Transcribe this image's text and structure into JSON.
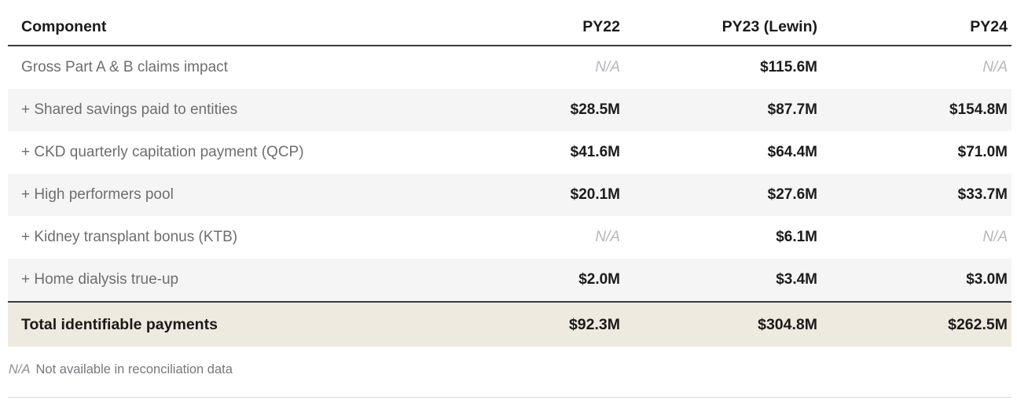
{
  "table": {
    "columns": [
      "Component",
      "PY22",
      "PY23 (Lewin)",
      "PY24"
    ],
    "rows": [
      {
        "label": "Gross Part A & B claims impact",
        "values": [
          "N/A",
          "$115.6M",
          "N/A"
        ]
      },
      {
        "label": "+ Shared savings paid to entities",
        "values": [
          "$28.5M",
          "$87.7M",
          "$154.8M"
        ]
      },
      {
        "label": "+ CKD quarterly capitation payment (QCP)",
        "values": [
          "$41.6M",
          "$64.4M",
          "$71.0M"
        ]
      },
      {
        "label": "+ High performers pool",
        "values": [
          "$20.1M",
          "$27.6M",
          "$33.7M"
        ]
      },
      {
        "label": "+ Kidney transplant bonus (KTB)",
        "values": [
          "N/A",
          "$6.1M",
          "N/A"
        ]
      },
      {
        "label": "+ Home dialysis true-up",
        "values": [
          "$2.0M",
          "$3.4M",
          "$3.0M"
        ]
      }
    ],
    "total_row": {
      "label": "Total identifiable payments",
      "values": [
        "$92.3M",
        "$304.8M",
        "$262.5M"
      ]
    }
  },
  "footnote": {
    "abbr": "N/A",
    "text": "Not available in reconciliation data"
  },
  "colors": {
    "header_text": "#1a1a1a",
    "row_label_text": "#6e6e6e",
    "value_text": "#1b1b1b",
    "na_text": "#b6b7bf",
    "zebra_row_bg": "#f5f5f5",
    "total_row_bg": "#efeae0",
    "thick_border": "#3b3b3b",
    "bottom_rule": "#d8d8d8"
  },
  "chart_data": {
    "type": "table",
    "columns": [
      "Component",
      "PY22",
      "PY23 (Lewin)",
      "PY24"
    ],
    "rows": [
      [
        "Gross Part A & B claims impact",
        "N/A",
        "$115.6M",
        "N/A"
      ],
      [
        "+ Shared savings paid to entities",
        "$28.5M",
        "$87.7M",
        "$154.8M"
      ],
      [
        "+ CKD quarterly capitation payment (QCP)",
        "$41.6M",
        "$64.4M",
        "$71.0M"
      ],
      [
        "+ High performers pool",
        "$20.1M",
        "$27.6M",
        "$33.7M"
      ],
      [
        "+ Kidney transplant bonus (KTB)",
        "N/A",
        "$6.1M",
        "N/A"
      ],
      [
        "+ Home dialysis true-up",
        "$2.0M",
        "$3.4M",
        "$3.0M"
      ],
      [
        "Total identifiable payments",
        "$92.3M",
        "$304.8M",
        "$262.5M"
      ]
    ],
    "series": [
      {
        "name": "PY22",
        "values": [
          null,
          28.5,
          41.6,
          20.1,
          null,
          2.0
        ],
        "total": 92.3
      },
      {
        "name": "PY23 (Lewin)",
        "values": [
          115.6,
          87.7,
          64.4,
          27.6,
          6.1,
          3.4
        ],
        "total": 304.8
      },
      {
        "name": "PY24",
        "values": [
          null,
          154.8,
          71.0,
          33.7,
          null,
          3.0
        ],
        "total": 262.5
      }
    ],
    "footnote": "N/A Not available in reconciliation data"
  }
}
